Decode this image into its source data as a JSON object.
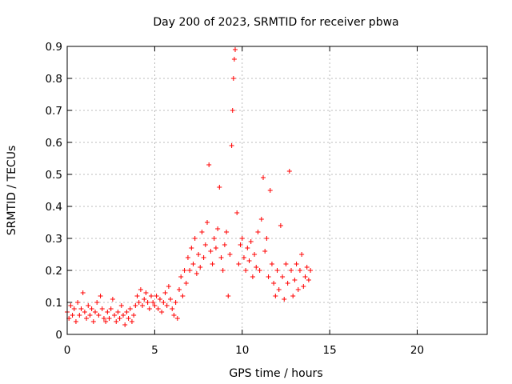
{
  "chart_data": {
    "type": "scatter",
    "title": "Day 200 of 2023, SRMTID for receiver pbwa",
    "xlabel": "GPS time / hours",
    "ylabel": "SRMTID / TECUs",
    "xlim": [
      0,
      24
    ],
    "ylim": [
      0,
      0.9
    ],
    "x_ticks": [
      0,
      5,
      10,
      15,
      20
    ],
    "x_tick_labels": [
      "0",
      "5",
      "10",
      "15",
      "20"
    ],
    "y_ticks": [
      0,
      0.1,
      0.2,
      0.3,
      0.4,
      0.5,
      0.6,
      0.7,
      0.8,
      0.9
    ],
    "y_tick_labels": [
      "0",
      "0.1",
      "0.2",
      "0.3",
      "0.4",
      "0.5",
      "0.6",
      "0.7",
      "0.8",
      "0.9"
    ],
    "grid": true,
    "marker": "+",
    "color": "#ff0000",
    "series": [
      {
        "name": "SRMTID",
        "points": [
          [
            0.0,
            0.07
          ],
          [
            0.1,
            0.05
          ],
          [
            0.2,
            0.09
          ],
          [
            0.3,
            0.06
          ],
          [
            0.4,
            0.08
          ],
          [
            0.5,
            0.04
          ],
          [
            0.6,
            0.1
          ],
          [
            0.7,
            0.06
          ],
          [
            0.8,
            0.08
          ],
          [
            0.9,
            0.13
          ],
          [
            1.0,
            0.07
          ],
          [
            1.1,
            0.05
          ],
          [
            1.2,
            0.09
          ],
          [
            1.3,
            0.06
          ],
          [
            1.4,
            0.08
          ],
          [
            1.5,
            0.04
          ],
          [
            1.6,
            0.07
          ],
          [
            1.7,
            0.1
          ],
          [
            1.8,
            0.06
          ],
          [
            1.9,
            0.12
          ],
          [
            2.0,
            0.08
          ],
          [
            2.1,
            0.05
          ],
          [
            2.2,
            0.04
          ],
          [
            2.3,
            0.07
          ],
          [
            2.4,
            0.05
          ],
          [
            2.5,
            0.08
          ],
          [
            2.6,
            0.11
          ],
          [
            2.7,
            0.06
          ],
          [
            2.8,
            0.04
          ],
          [
            2.9,
            0.07
          ],
          [
            3.0,
            0.05
          ],
          [
            3.1,
            0.09
          ],
          [
            3.2,
            0.06
          ],
          [
            3.3,
            0.03
          ],
          [
            3.4,
            0.07
          ],
          [
            3.5,
            0.05
          ],
          [
            3.6,
            0.08
          ],
          [
            3.7,
            0.04
          ],
          [
            3.8,
            0.06
          ],
          [
            3.9,
            0.09
          ],
          [
            4.0,
            0.12
          ],
          [
            4.1,
            0.1
          ],
          [
            4.2,
            0.14
          ],
          [
            4.3,
            0.09
          ],
          [
            4.4,
            0.11
          ],
          [
            4.5,
            0.13
          ],
          [
            4.6,
            0.1
          ],
          [
            4.7,
            0.08
          ],
          [
            4.8,
            0.12
          ],
          [
            4.9,
            0.1
          ],
          [
            5.0,
            0.09
          ],
          [
            5.1,
            0.12
          ],
          [
            5.2,
            0.08
          ],
          [
            5.3,
            0.11
          ],
          [
            5.4,
            0.07
          ],
          [
            5.5,
            0.1
          ],
          [
            5.6,
            0.13
          ],
          [
            5.7,
            0.09
          ],
          [
            5.8,
            0.15
          ],
          [
            5.9,
            0.11
          ],
          [
            6.0,
            0.08
          ],
          [
            6.1,
            0.06
          ],
          [
            6.2,
            0.1
          ],
          [
            6.3,
            0.05
          ],
          [
            6.4,
            0.14
          ],
          [
            6.5,
            0.18
          ],
          [
            6.6,
            0.12
          ],
          [
            6.7,
            0.2
          ],
          [
            6.8,
            0.16
          ],
          [
            6.9,
            0.24
          ],
          [
            7.0,
            0.2
          ],
          [
            7.1,
            0.27
          ],
          [
            7.2,
            0.22
          ],
          [
            7.3,
            0.3
          ],
          [
            7.4,
            0.19
          ],
          [
            7.5,
            0.25
          ],
          [
            7.6,
            0.21
          ],
          [
            7.7,
            0.32
          ],
          [
            7.8,
            0.24
          ],
          [
            7.9,
            0.28
          ],
          [
            8.0,
            0.35
          ],
          [
            8.1,
            0.53
          ],
          [
            8.2,
            0.26
          ],
          [
            8.3,
            0.22
          ],
          [
            8.4,
            0.3
          ],
          [
            8.5,
            0.27
          ],
          [
            8.6,
            0.33
          ],
          [
            8.7,
            0.46
          ],
          [
            8.8,
            0.24
          ],
          [
            8.9,
            0.2
          ],
          [
            9.0,
            0.28
          ],
          [
            9.1,
            0.32
          ],
          [
            9.2,
            0.12
          ],
          [
            9.3,
            0.25
          ],
          [
            9.4,
            0.59
          ],
          [
            9.45,
            0.7
          ],
          [
            9.5,
            0.8
          ],
          [
            9.55,
            0.86
          ],
          [
            9.6,
            0.89
          ],
          [
            9.7,
            0.38
          ],
          [
            9.8,
            0.22
          ],
          [
            9.9,
            0.28
          ],
          [
            10.0,
            0.3
          ],
          [
            10.1,
            0.24
          ],
          [
            10.2,
            0.2
          ],
          [
            10.3,
            0.27
          ],
          [
            10.4,
            0.23
          ],
          [
            10.5,
            0.29
          ],
          [
            10.6,
            0.18
          ],
          [
            10.7,
            0.25
          ],
          [
            10.8,
            0.21
          ],
          [
            10.9,
            0.32
          ],
          [
            11.0,
            0.2
          ],
          [
            11.1,
            0.36
          ],
          [
            11.2,
            0.49
          ],
          [
            11.3,
            0.26
          ],
          [
            11.4,
            0.3
          ],
          [
            11.5,
            0.18
          ],
          [
            11.6,
            0.45
          ],
          [
            11.7,
            0.22
          ],
          [
            11.8,
            0.16
          ],
          [
            11.9,
            0.12
          ],
          [
            12.0,
            0.2
          ],
          [
            12.1,
            0.14
          ],
          [
            12.2,
            0.34
          ],
          [
            12.3,
            0.18
          ],
          [
            12.4,
            0.11
          ],
          [
            12.5,
            0.22
          ],
          [
            12.6,
            0.16
          ],
          [
            12.7,
            0.51
          ],
          [
            12.8,
            0.2
          ],
          [
            12.9,
            0.12
          ],
          [
            13.0,
            0.17
          ],
          [
            13.1,
            0.22
          ],
          [
            13.2,
            0.14
          ],
          [
            13.3,
            0.2
          ],
          [
            13.4,
            0.25
          ],
          [
            13.5,
            0.15
          ],
          [
            13.6,
            0.18
          ],
          [
            13.7,
            0.21
          ],
          [
            13.8,
            0.17
          ],
          [
            13.9,
            0.2
          ]
        ]
      }
    ]
  }
}
